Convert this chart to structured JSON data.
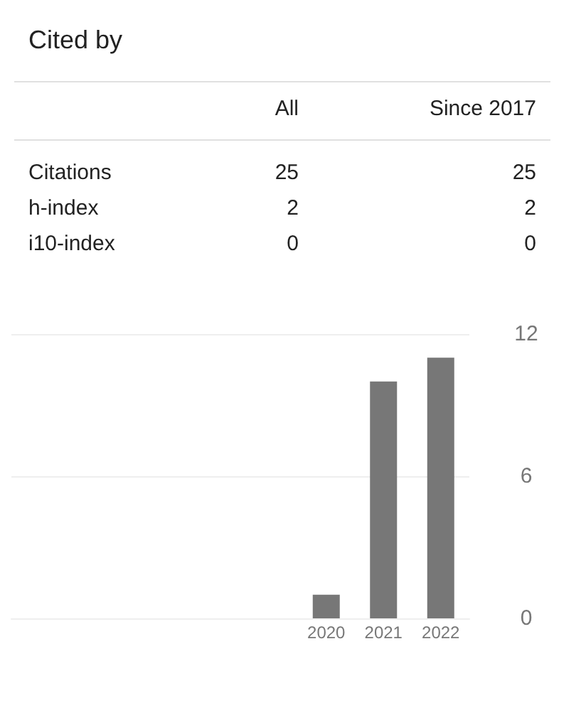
{
  "chart_data": [
    {
      "type": "other",
      "title": "Cited by",
      "categories": [
        "Citations",
        "h-index",
        "i10-index"
      ],
      "data_labels": true,
      "series": [
        {
          "name": "All",
          "values": [
            25,
            2,
            0
          ]
        },
        {
          "name": "Since 2017",
          "values": [
            25,
            2,
            0
          ]
        }
      ]
    },
    {
      "type": "bar",
      "categories": [
        null,
        null,
        null,
        null,
        null,
        "2020",
        "2021",
        "2022"
      ],
      "values": [
        null,
        null,
        null,
        null,
        null,
        1,
        10,
        11
      ],
      "color": "#777777",
      "ylim": [
        0,
        12
      ],
      "yticks": [
        0,
        6,
        12
      ],
      "grid": "y"
    }
  ]
}
